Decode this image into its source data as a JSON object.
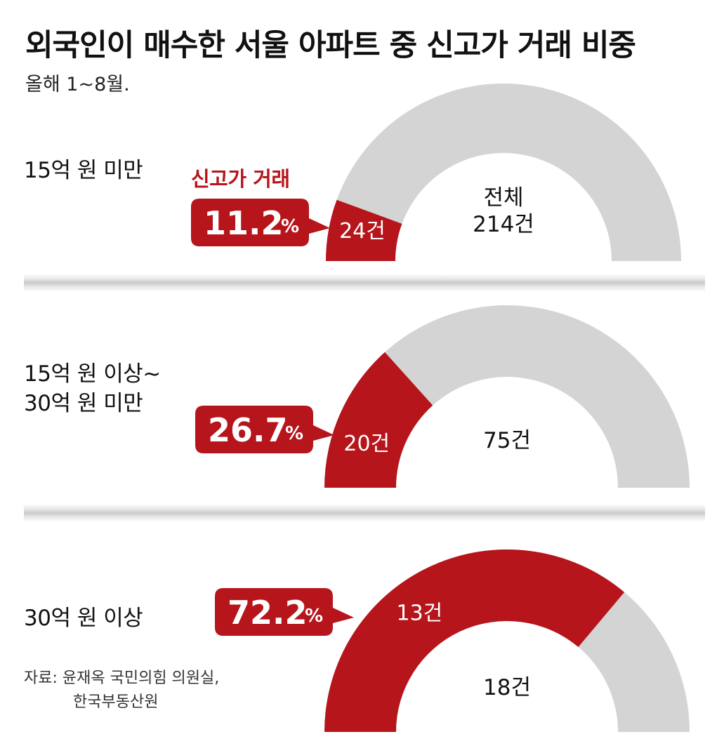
{
  "title": "외국인이 매수한 서울 아파트 중 신고가 거래 비중",
  "subtitle": "올해 1~8월.",
  "legend_label": "신고가 거래",
  "total_caption": "전체",
  "source": {
    "line1": "자료: 윤재옥 국민의힘 의원실,",
    "line2": "한국부동산원"
  },
  "colors": {
    "highlight": "#b5151b",
    "rest": "#d4d4d4",
    "background": "#ffffff"
  },
  "chart_data": [
    {
      "type": "gauge",
      "category": "15억 원 미만",
      "new_high_count": 24,
      "new_high_label": "24건",
      "total_count": 214,
      "total_label": "214건",
      "percent": 11.2,
      "percent_value": "11.2",
      "percent_unit": "%"
    },
    {
      "type": "gauge",
      "category": "15억 원 이상~\n30억 원 미만",
      "new_high_count": 20,
      "new_high_label": "20건",
      "total_count": 75,
      "total_label": "75건",
      "percent": 26.7,
      "percent_value": "26.7",
      "percent_unit": "%"
    },
    {
      "type": "gauge",
      "category": "30억 원 이상",
      "new_high_count": 13,
      "new_high_label": "13건",
      "total_count": 18,
      "total_label": "18건",
      "percent": 72.2,
      "percent_value": "72.2",
      "percent_unit": "%"
    }
  ]
}
